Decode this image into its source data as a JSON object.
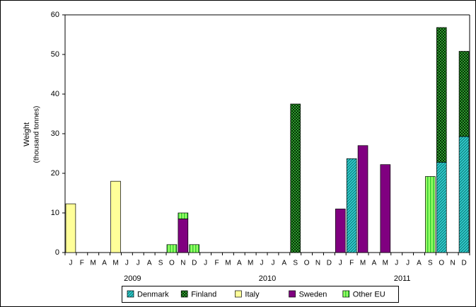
{
  "chart_data": {
    "type": "stacked-bar",
    "ylabel": "Weight",
    "ylabel_sub": "(thousand tonnes)",
    "categories": [
      "J",
      "F",
      "M",
      "A",
      "M",
      "J",
      "J",
      "A",
      "S",
      "O",
      "N",
      "D",
      "J",
      "F",
      "M",
      "A",
      "M",
      "J",
      "J",
      "A",
      "S",
      "O",
      "N",
      "D",
      "J",
      "F",
      "M",
      "A",
      "M",
      "J",
      "J",
      "A",
      "S",
      "O",
      "N",
      "D"
    ],
    "year_labels": [
      "2009",
      "2010",
      "2011"
    ],
    "ylim": [
      0,
      60
    ],
    "yticks": [
      0,
      10,
      20,
      30,
      40,
      50,
      60
    ],
    "grid": false,
    "legend": "bottom",
    "series": [
      {
        "name": "Denmark",
        "color": "#33cccc",
        "pattern": "diagonal",
        "values": [
          0,
          0,
          0,
          0,
          0,
          0,
          0,
          0,
          0,
          0,
          0,
          0,
          0,
          0,
          0,
          0,
          0,
          0,
          0,
          0,
          0,
          0,
          0,
          0,
          0,
          23.7,
          0,
          0,
          0,
          0,
          0,
          0,
          0,
          22.8,
          0,
          29.3
        ]
      },
      {
        "name": "Finland",
        "color": "#339933",
        "pattern": "checker",
        "values": [
          0,
          0,
          0,
          0,
          0,
          0,
          0,
          0,
          0,
          0,
          0,
          0,
          0,
          0,
          0,
          0,
          0,
          0,
          0,
          0,
          37.5,
          0,
          0,
          0,
          0,
          0,
          0,
          0,
          0,
          0,
          0,
          0,
          0,
          34,
          0,
          21.5
        ]
      },
      {
        "name": "Italy",
        "color": "#ffff99",
        "pattern": "solid",
        "values": [
          12.3,
          0,
          0,
          0,
          18,
          0,
          0,
          0,
          0,
          0,
          0,
          0,
          0,
          0,
          0,
          0,
          0,
          0,
          0,
          0,
          0,
          0,
          0,
          0,
          0,
          0,
          0,
          0,
          0,
          0,
          0,
          0,
          0,
          0,
          0,
          0
        ]
      },
      {
        "name": "Sweden",
        "color": "#800080",
        "pattern": "solid",
        "values": [
          0,
          0,
          0,
          0,
          0,
          0,
          0,
          0,
          0,
          0,
          8.5,
          0,
          0,
          0,
          0,
          0,
          0,
          0,
          0,
          0,
          0,
          0,
          0,
          0,
          11,
          0,
          27,
          0,
          22.2,
          0,
          0,
          0,
          0,
          0,
          0,
          0
        ]
      },
      {
        "name": "Other EU",
        "color": "#99ff66",
        "pattern": "vertical",
        "values": [
          0,
          0,
          0,
          0,
          0,
          0,
          0,
          0,
          0,
          2,
          1.5,
          2,
          0,
          0,
          0,
          0,
          0,
          0,
          0,
          0,
          0,
          0,
          0,
          0,
          0,
          0,
          0,
          0,
          0,
          0,
          0,
          0,
          19.2,
          0,
          0,
          0
        ]
      }
    ]
  }
}
